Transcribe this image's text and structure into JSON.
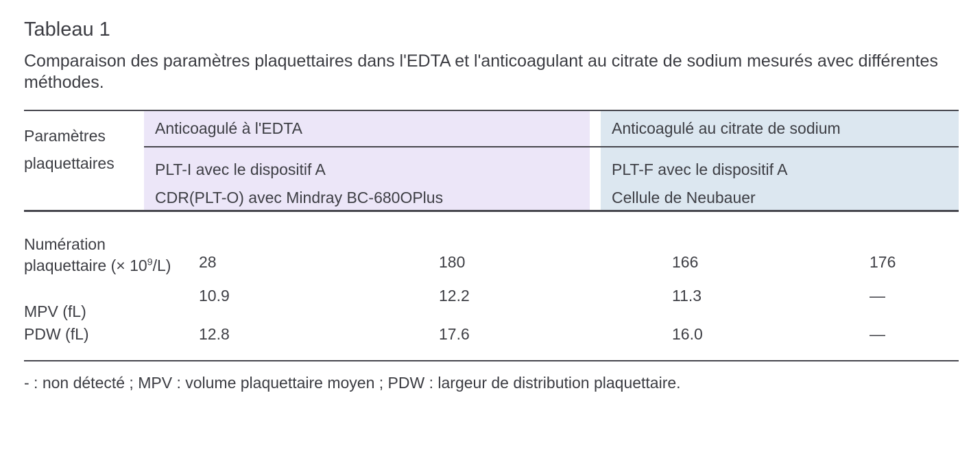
{
  "title": "Tableau 1",
  "caption": "Comparaison des paramètres plaquettaires dans l'EDTA et l'anticoagulant au citrate de sodium mesurés avec différentes méthodes.",
  "colors": {
    "edta_bg": "#ece6f8",
    "citrate_bg": "#dce7f0",
    "rule": "#46464d",
    "text": "#3b3c42"
  },
  "table": {
    "param_header": "Paramètres plaquettaires",
    "groups": [
      {
        "title": "Anticoagulé à l'EDTA",
        "methods": [
          "PLT-I avec le dispositif A",
          "CDR(PLT-O) avec Mindray BC-680OPlus"
        ]
      },
      {
        "title": "Anticoagulé au citrate de sodium",
        "methods": [
          "PLT-F avec le dispositif A",
          "Cellule de Neubauer"
        ]
      }
    ],
    "rows": [
      {
        "label_line1": "Numération",
        "label_line2_pre": "plaquettaire (× 10",
        "label_sup": "9",
        "label_line2_post": "/L)",
        "values": [
          "28",
          "180",
          "166",
          "176"
        ]
      },
      {
        "label": "MPV (fL)",
        "values": [
          "10.9",
          "12.2",
          "11.3",
          "—"
        ]
      },
      {
        "label": "PDW (fL)",
        "values": [
          "12.8",
          "17.6",
          "16.0",
          "—"
        ]
      }
    ]
  },
  "footnote": "- : non détecté ; MPV : volume plaquettaire moyen ; PDW : largeur de distribution plaquettaire."
}
